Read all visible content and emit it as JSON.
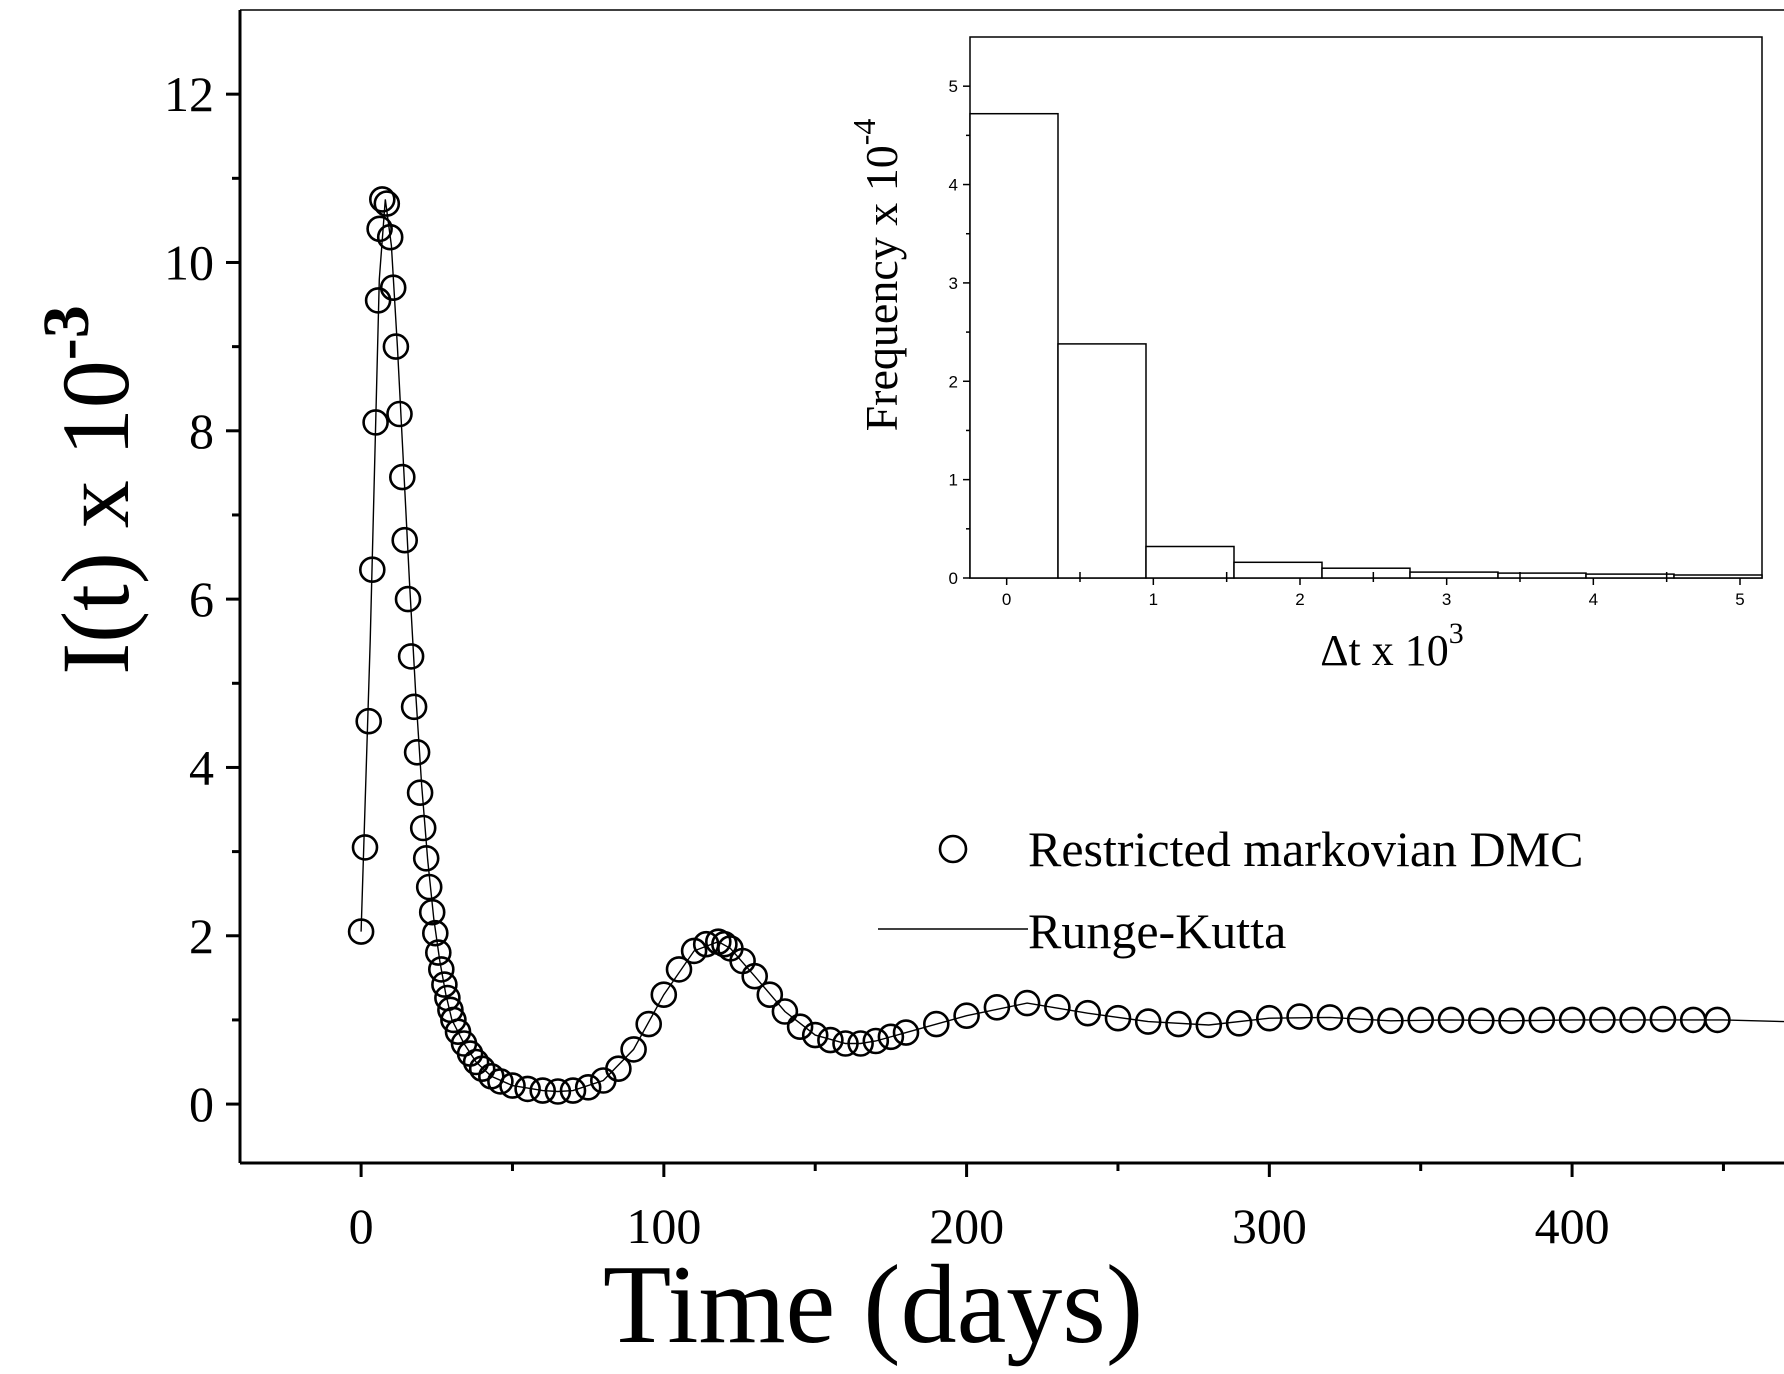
{
  "chart_data": [
    {
      "type": "scatter",
      "ylabel": "I(t) x 10",
      "ylabel_exponent": "-3",
      "xlabel": "Time (days)",
      "xlim": [
        -40,
        470
      ],
      "ylim": [
        -0.7,
        13
      ],
      "x_ticks": [
        0,
        100,
        200,
        300,
        400
      ],
      "y_ticks": [
        0,
        2,
        4,
        6,
        8,
        10,
        12
      ],
      "series": [
        {
          "name": "Restricted markovian DMC",
          "marker": "open-circle",
          "x": [
            0,
            1.3,
            2.5,
            3.7,
            4.8,
            5.6,
            6.1,
            7.0,
            8.5,
            9.6,
            10.6,
            11.5,
            12.7,
            13.6,
            14.4,
            15.5,
            16.5,
            17.5,
            18.5,
            19.5,
            20.5,
            21.5,
            22.5,
            23.5,
            24.5,
            25.5,
            26.5,
            27.5,
            28.5,
            29.5,
            30.5,
            32,
            34,
            36,
            38,
            40,
            43,
            46,
            50,
            55,
            60,
            65,
            70,
            75,
            80,
            85,
            90,
            95,
            100,
            105,
            110,
            114,
            118,
            120,
            122,
            126,
            130,
            135,
            140,
            145,
            150,
            155,
            160,
            165,
            170,
            175,
            180,
            190,
            200,
            210,
            220,
            230,
            240,
            250,
            260,
            270,
            280,
            290,
            300,
            310,
            320,
            330,
            340,
            350,
            360,
            370,
            380,
            390,
            400,
            410,
            420,
            430,
            440,
            448
          ],
          "y": [
            2.05,
            3.05,
            4.55,
            6.35,
            8.1,
            9.55,
            10.4,
            10.75,
            10.7,
            10.3,
            9.7,
            9.0,
            8.2,
            7.45,
            6.7,
            6.0,
            5.32,
            4.72,
            4.18,
            3.7,
            3.28,
            2.92,
            2.58,
            2.28,
            2.03,
            1.8,
            1.6,
            1.42,
            1.26,
            1.12,
            1.0,
            0.86,
            0.72,
            0.6,
            0.5,
            0.42,
            0.33,
            0.27,
            0.22,
            0.18,
            0.16,
            0.15,
            0.16,
            0.2,
            0.28,
            0.42,
            0.65,
            0.95,
            1.3,
            1.6,
            1.82,
            1.9,
            1.93,
            1.9,
            1.85,
            1.7,
            1.52,
            1.3,
            1.1,
            0.92,
            0.82,
            0.76,
            0.72,
            0.72,
            0.75,
            0.8,
            0.85,
            0.95,
            1.05,
            1.15,
            1.2,
            1.15,
            1.08,
            1.02,
            0.98,
            0.95,
            0.94,
            0.96,
            1.02,
            1.04,
            1.03,
            1.0,
            0.99,
            1.0,
            1.0,
            0.99,
            0.99,
            1.0,
            1.0,
            1.0,
            1.0,
            1.01,
            1.0,
            1.0
          ]
        },
        {
          "name": "Runge-Kutta",
          "marker": "line",
          "x": [
            0,
            3,
            6,
            8,
            10,
            12,
            14,
            16,
            18,
            20,
            22,
            24,
            26,
            28,
            30,
            34,
            38,
            43,
            50,
            60,
            65,
            70,
            80,
            90,
            100,
            110,
            118,
            122,
            130,
            140,
            150,
            160,
            165,
            170,
            180,
            200,
            220,
            240,
            260,
            280,
            300,
            320,
            340,
            360,
            380,
            400,
            420,
            440,
            450,
            470
          ],
          "y": [
            2.05,
            5.5,
            9.8,
            10.75,
            10.2,
            9.0,
            7.6,
            6.2,
            4.9,
            3.8,
            2.9,
            2.2,
            1.7,
            1.3,
            1.0,
            0.72,
            0.5,
            0.33,
            0.22,
            0.16,
            0.15,
            0.16,
            0.28,
            0.65,
            1.3,
            1.82,
            1.93,
            1.85,
            1.52,
            1.1,
            0.82,
            0.72,
            0.72,
            0.75,
            0.85,
            1.05,
            1.2,
            1.08,
            0.98,
            0.94,
            1.02,
            1.03,
            0.99,
            1.0,
            0.99,
            1.0,
            1.0,
            1.0,
            1.0,
            0.98
          ]
        }
      ],
      "legend_position": "middle-right"
    },
    {
      "type": "bar",
      "subtype": "histogram-inset",
      "ylabel": "Frequency x 10",
      "ylabel_exponent": "-4",
      "xlabel": "Δt x 10",
      "xlabel_exponent": "3",
      "xlim": [
        -0.25,
        5.15
      ],
      "ylim": [
        0,
        5.5
      ],
      "x_ticks": [
        0,
        1,
        2,
        3,
        4,
        5
      ],
      "y_ticks": [
        0,
        1,
        2,
        3,
        4,
        5
      ],
      "bin_edges": [
        -0.25,
        0.35,
        0.95,
        1.55,
        2.15,
        2.75,
        3.35,
        3.95,
        4.55,
        5.15
      ],
      "values": [
        4.72,
        2.38,
        0.32,
        0.16,
        0.1,
        0.06,
        0.05,
        0.04,
        0.03
      ]
    }
  ]
}
